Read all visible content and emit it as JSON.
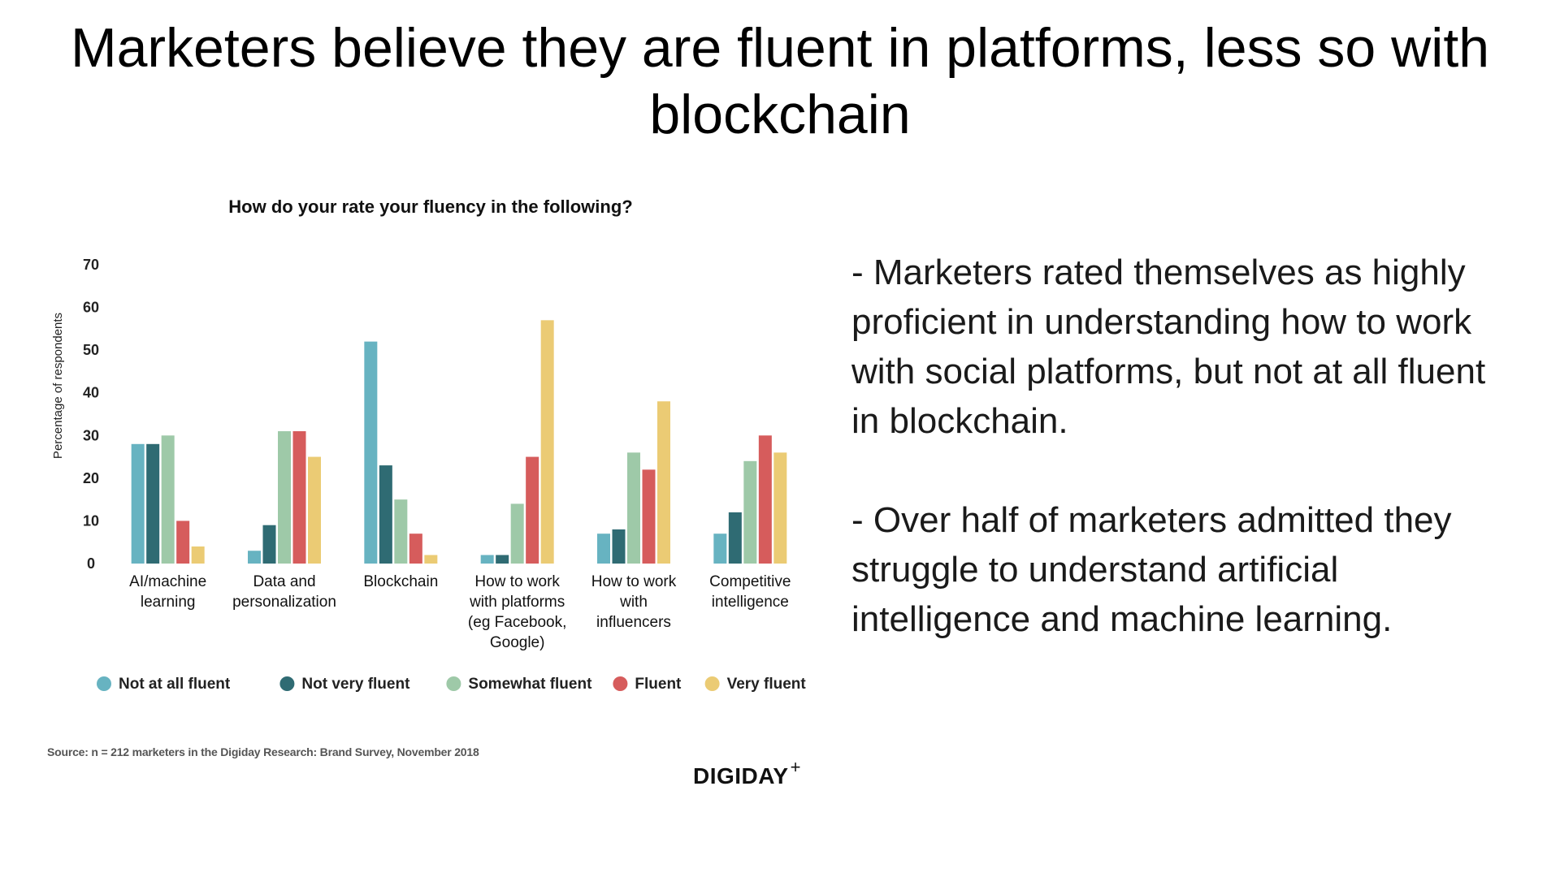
{
  "slide": {
    "title": "Marketers believe they are fluent in platforms, less so with blockchain",
    "notes": [
      "- Marketers rated themselves as highly proficient in understanding how to work with social platforms, but not at all fluent in blockchain.",
      "- Over half of marketers admitted they struggle to understand artificial intelligence and machine learning."
    ],
    "source": "Source: n = 212 marketers in the Digiday Research: Brand Survey, November 2018",
    "brand": "DIGIDAY",
    "brand_mark": "+"
  },
  "chart_data": {
    "type": "bar",
    "title": "How do your rate your fluency in the following?",
    "ylabel": "Percentage of respondents",
    "xlabel": "",
    "ylim": [
      0,
      70
    ],
    "yticks": [
      0,
      10,
      20,
      30,
      40,
      50,
      60,
      70
    ],
    "grid": false,
    "legend_position": "bottom",
    "categories": [
      [
        "AI/machine",
        "learning"
      ],
      [
        "Data and",
        "personalization"
      ],
      [
        "Blockchain"
      ],
      [
        "How to work",
        "with platforms",
        "(eg Facebook,",
        "Google)"
      ],
      [
        "How to work",
        "with",
        "influencers"
      ],
      [
        "Competitive",
        "intelligence"
      ]
    ],
    "series": [
      {
        "name": "Not at all fluent",
        "color": "#67b3c1",
        "values": [
          28,
          3,
          52,
          2,
          7,
          7
        ]
      },
      {
        "name": "Not very fluent",
        "color": "#2f6b73",
        "values": [
          28,
          9,
          23,
          2,
          8,
          12
        ]
      },
      {
        "name": "Somewhat fluent",
        "color": "#9ec9a8",
        "values": [
          30,
          31,
          15,
          14,
          26,
          24
        ]
      },
      {
        "name": "Fluent",
        "color": "#d65c5c",
        "values": [
          10,
          31,
          7,
          25,
          22,
          30
        ]
      },
      {
        "name": "Very fluent",
        "color": "#ebcb74",
        "values": [
          4,
          25,
          2,
          57,
          38,
          26
        ]
      }
    ]
  }
}
